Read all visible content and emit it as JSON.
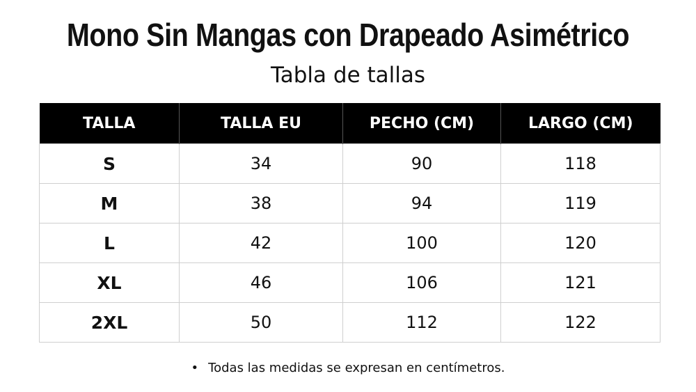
{
  "title": "Mono Sin Mangas con Drapeado Asimétrico",
  "subtitle": "Tabla de tallas",
  "table": {
    "headers": [
      "TALLA",
      "TALLA EU",
      "PECHO (CM)",
      "LARGO (CM)"
    ],
    "rows": [
      [
        "S",
        "34",
        "90",
        "118"
      ],
      [
        "M",
        "38",
        "94",
        "119"
      ],
      [
        "L",
        "42",
        "100",
        "120"
      ],
      [
        "XL",
        "46",
        "106",
        "121"
      ],
      [
        "2XL",
        "50",
        "112",
        "122"
      ]
    ]
  },
  "note": {
    "bullet": "•",
    "text": "Todas las medidas se expresan en centímetros."
  }
}
